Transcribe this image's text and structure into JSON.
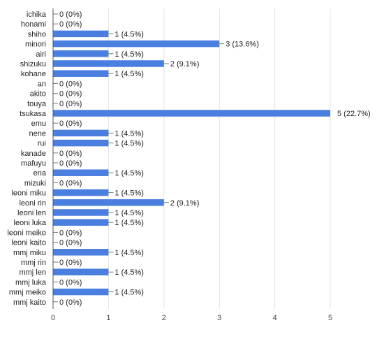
{
  "chart_data": {
    "type": "bar",
    "orientation": "horizontal",
    "categories": [
      "ichika",
      "honami",
      "shiho",
      "minori",
      "airi",
      "shizuku",
      "kohane",
      "an",
      "akito",
      "touya",
      "tsukasa",
      "emu",
      "nene",
      "rui",
      "kanade",
      "mafuyu",
      "ena",
      "mizuki",
      "leoni miku",
      "leoni rin",
      "leoni len",
      "leoni luka",
      "leoni meiko",
      "leoni kaito",
      "mmj miku",
      "mmj rin",
      "mmj len",
      "mmj luka",
      "mmj meiko",
      "mmj kaito"
    ],
    "values": [
      0,
      0,
      1,
      3,
      1,
      2,
      1,
      0,
      0,
      0,
      5,
      0,
      1,
      1,
      0,
      0,
      1,
      0,
      1,
      2,
      1,
      1,
      0,
      0,
      1,
      0,
      1,
      0,
      1,
      0
    ],
    "value_labels": [
      "0 (0%)",
      "0 (0%)",
      "1 (4.5%)",
      "3 (13.6%)",
      "1 (4.5%)",
      "2 (9.1%)",
      "1 (4.5%)",
      "0 (0%)",
      "0 (0%)",
      "0 (0%)",
      "5 (22.7%)",
      "0 (0%)",
      "1 (4.5%)",
      "1 (4.5%)",
      "0 (0%)",
      "0 (0%)",
      "1 (4.5%)",
      "0 (0%)",
      "1 (4.5%)",
      "2 (9.1%)",
      "1 (4.5%)",
      "1 (4.5%)",
      "0 (0%)",
      "0 (0%)",
      "1 (4.5%)",
      "0 (0%)",
      "1 (4.5%)",
      "0 (0%)",
      "1 (4.5%)",
      "0 (0%)"
    ],
    "x_ticks": [
      "0",
      "1",
      "2",
      "3",
      "4",
      "5"
    ],
    "xlim": [
      0,
      5
    ],
    "title": "",
    "xlabel": "",
    "ylabel": "",
    "grid": "vertical",
    "legend": "none",
    "colors": {
      "bar": "#4a7fe0",
      "grid": "#e3e3e3",
      "axis": "#555555",
      "leader": "#777777"
    }
  }
}
